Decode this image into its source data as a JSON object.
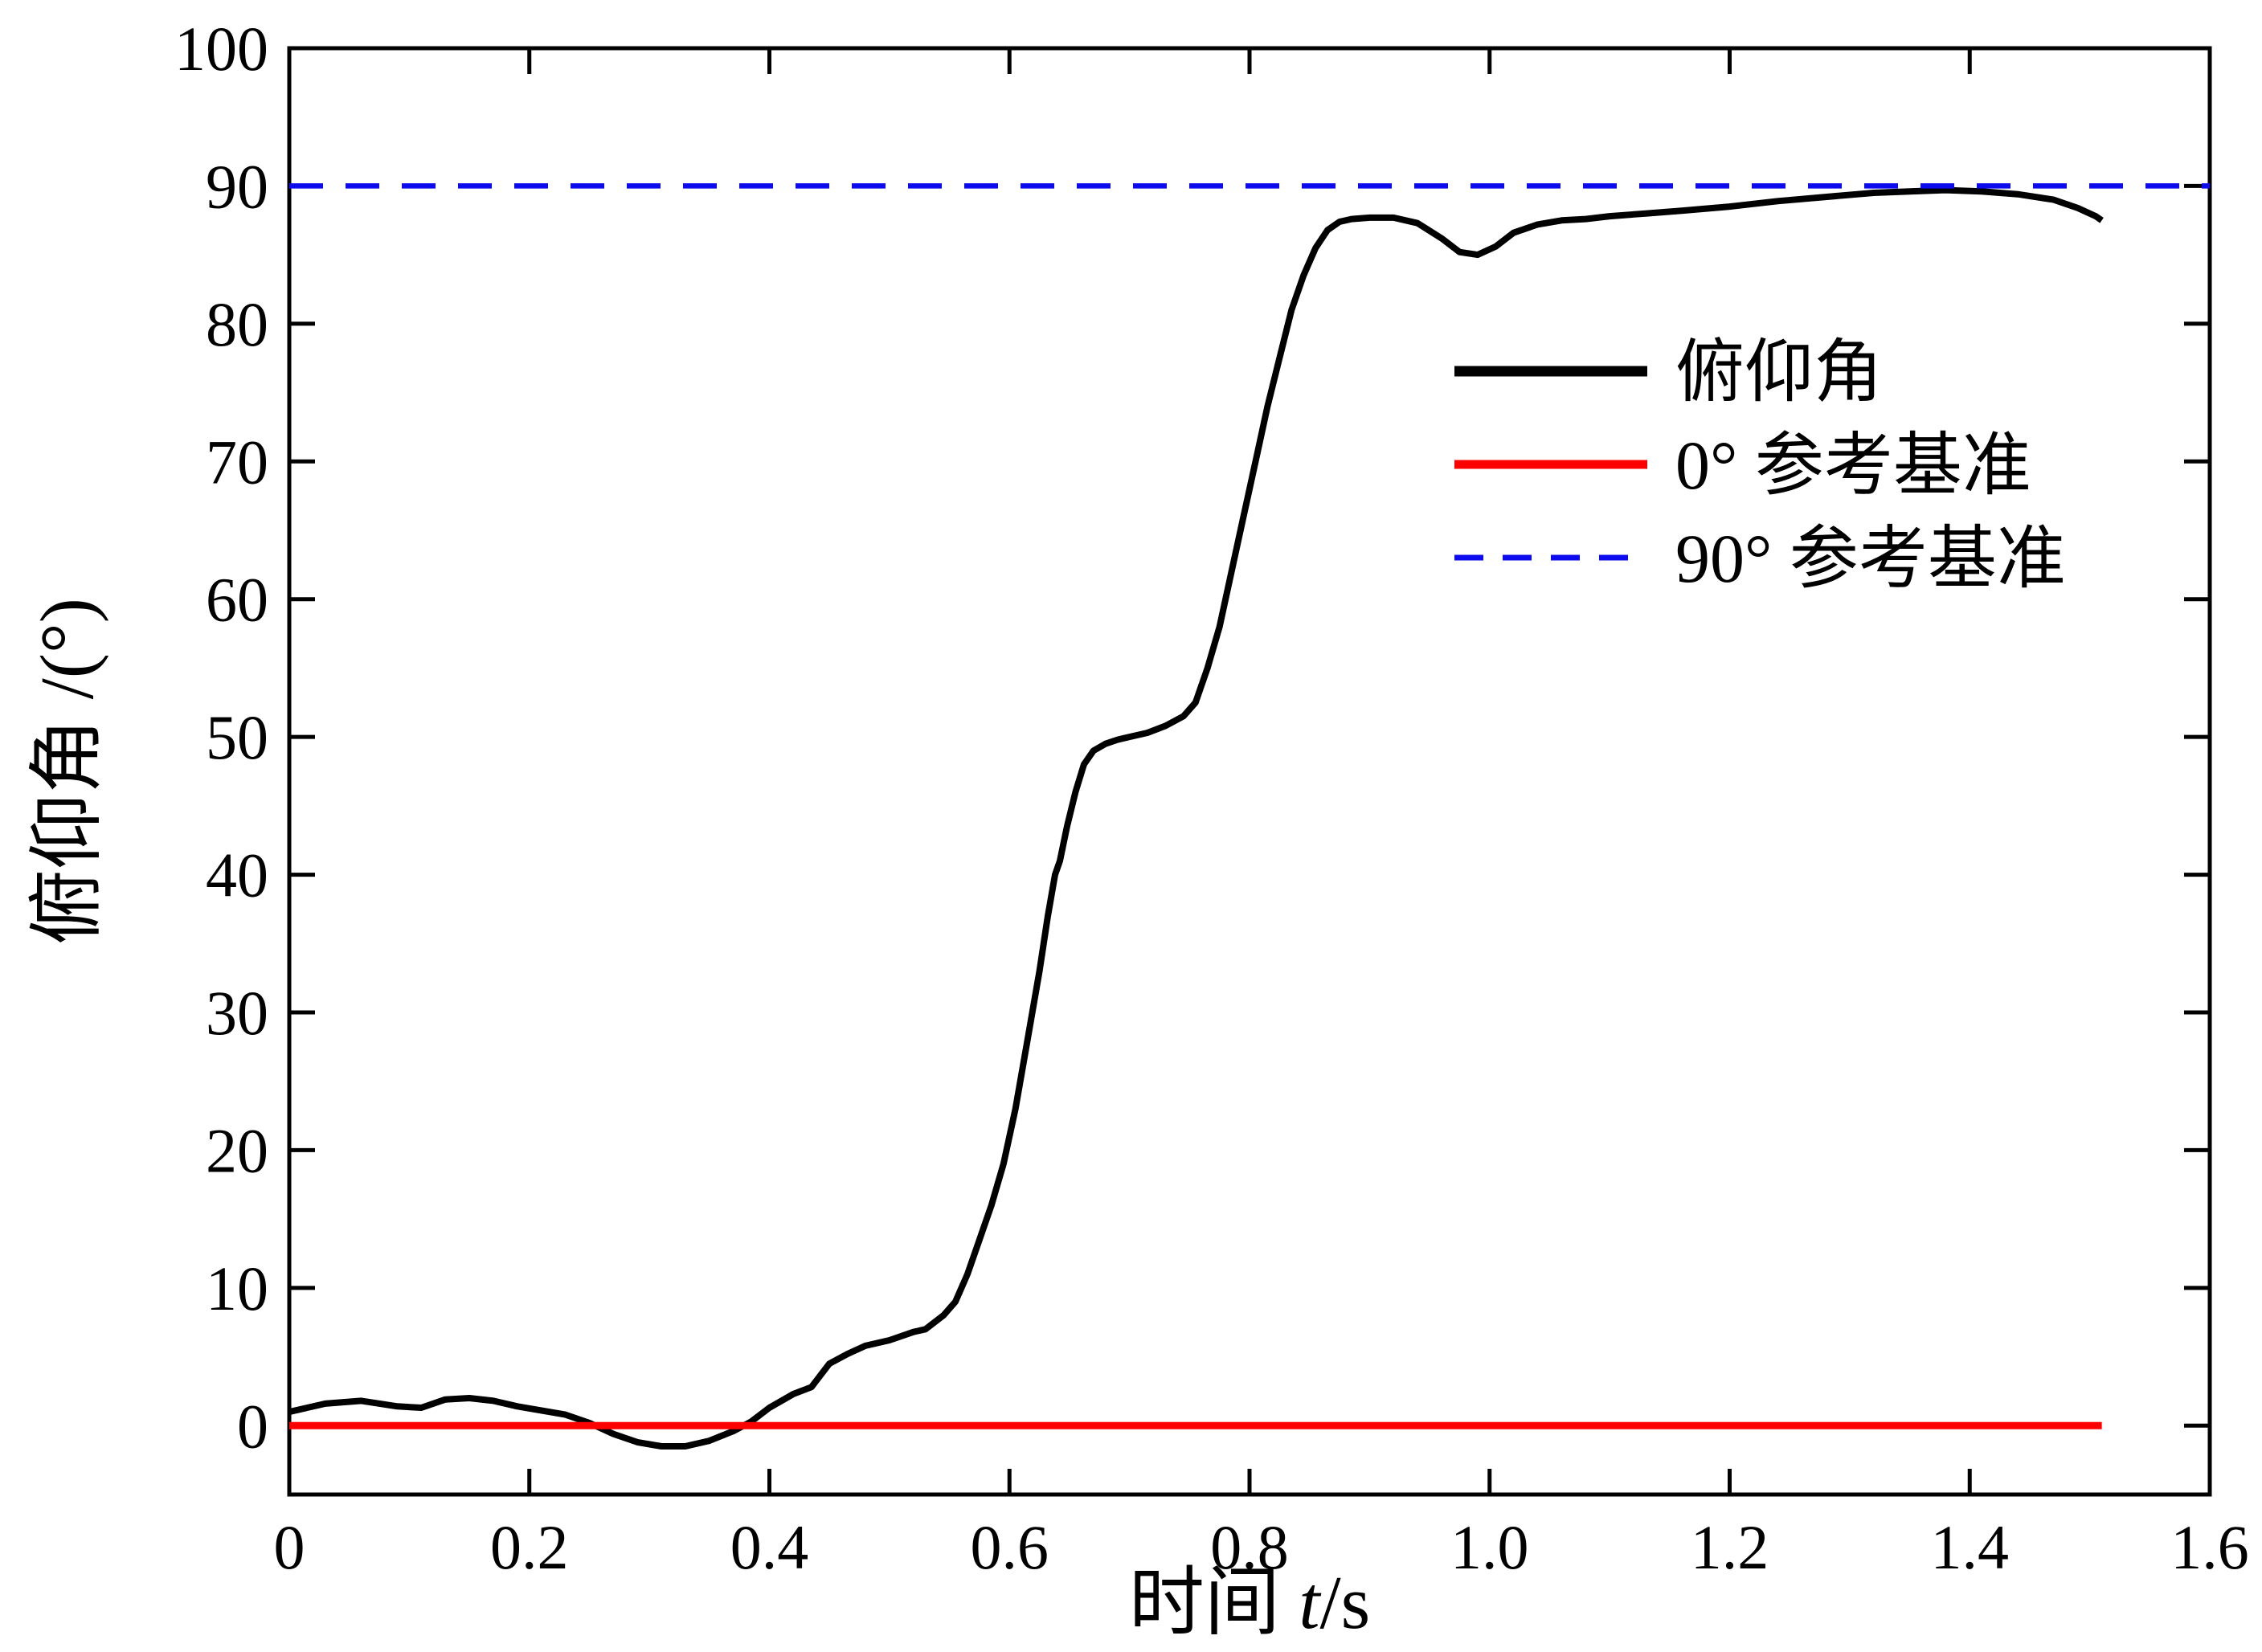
{
  "figure": {
    "background": "#ffffff",
    "axis_color": "#000000"
  },
  "chart_data": {
    "type": "line",
    "title": "",
    "xlabel": "时间 t/s",
    "xlabel_parts": [
      "时间 ",
      "t",
      "/s"
    ],
    "ylabel": "俯仰角 /(°)",
    "xlim": [
      0,
      1.6
    ],
    "ylim": [
      -5,
      100
    ],
    "grid": false,
    "legend_position": "inside upper-right",
    "xticks": [
      0,
      0.2,
      0.4,
      0.6,
      0.8,
      1.0,
      1.2,
      1.4,
      1.6
    ],
    "xtick_labels": [
      "0",
      "0.2",
      "0.4",
      "0.6",
      "0.8",
      "1.0",
      "1.2",
      "1.4",
      "1.6"
    ],
    "yticks": [
      0,
      10,
      20,
      30,
      40,
      50,
      60,
      70,
      80,
      90,
      100
    ],
    "ytick_labels": [
      "0",
      "10",
      "20",
      "30",
      "40",
      "50",
      "60",
      "70",
      "80",
      "90",
      "100"
    ],
    "series": [
      {
        "name": "俯仰角",
        "color": "#000000",
        "style": "solid",
        "x": [
          0,
          0.03,
          0.06,
          0.09,
          0.11,
          0.13,
          0.15,
          0.17,
          0.19,
          0.21,
          0.23,
          0.25,
          0.27,
          0.29,
          0.31,
          0.33,
          0.35,
          0.37,
          0.385,
          0.4,
          0.42,
          0.435,
          0.45,
          0.465,
          0.48,
          0.5,
          0.52,
          0.53,
          0.545,
          0.555,
          0.565,
          0.575,
          0.585,
          0.595,
          0.605,
          0.615,
          0.625,
          0.632,
          0.638,
          0.642,
          0.648,
          0.655,
          0.662,
          0.67,
          0.68,
          0.69,
          0.7,
          0.715,
          0.73,
          0.745,
          0.755,
          0.765,
          0.775,
          0.785,
          0.795,
          0.805,
          0.815,
          0.825,
          0.835,
          0.845,
          0.855,
          0.865,
          0.875,
          0.885,
          0.9,
          0.92,
          0.94,
          0.96,
          0.975,
          0.99,
          1.005,
          1.02,
          1.04,
          1.06,
          1.08,
          1.1,
          1.13,
          1.16,
          1.2,
          1.24,
          1.28,
          1.32,
          1.35,
          1.38,
          1.41,
          1.44,
          1.47,
          1.49,
          1.505,
          1.51
        ],
        "y": [
          1.0,
          1.6,
          1.8,
          1.4,
          1.3,
          1.9,
          2.0,
          1.8,
          1.4,
          1.1,
          0.8,
          0.2,
          -0.6,
          -1.2,
          -1.5,
          -1.5,
          -1.1,
          -0.4,
          0.3,
          1.3,
          2.3,
          2.8,
          4.5,
          5.2,
          5.8,
          6.2,
          6.8,
          7.0,
          8.0,
          9.0,
          11,
          13.5,
          16,
          19,
          23,
          28,
          33,
          37,
          40,
          41,
          43.5,
          46,
          48,
          49,
          49.5,
          49.8,
          50.0,
          50.3,
          50.8,
          51.5,
          52.5,
          55,
          58,
          62,
          66,
          70,
          74,
          77.5,
          81,
          83.5,
          85.5,
          86.8,
          87.4,
          87.6,
          87.7,
          87.7,
          87.3,
          86.2,
          85.2,
          85.0,
          85.6,
          86.6,
          87.2,
          87.5,
          87.6,
          87.8,
          88.0,
          88.2,
          88.5,
          88.9,
          89.2,
          89.5,
          89.6,
          89.7,
          89.6,
          89.4,
          89.0,
          88.4,
          87.8,
          87.5
        ]
      },
      {
        "name": "0° 参考基准",
        "color": "#fe0000",
        "style": "solid",
        "x": [
          0,
          1.51
        ],
        "y": [
          0,
          0
        ]
      },
      {
        "name": "90° 参考基准",
        "color": "#0b0bee",
        "style": "dashed",
        "x": [
          0,
          1.6
        ],
        "y": [
          90,
          90
        ]
      }
    ]
  }
}
